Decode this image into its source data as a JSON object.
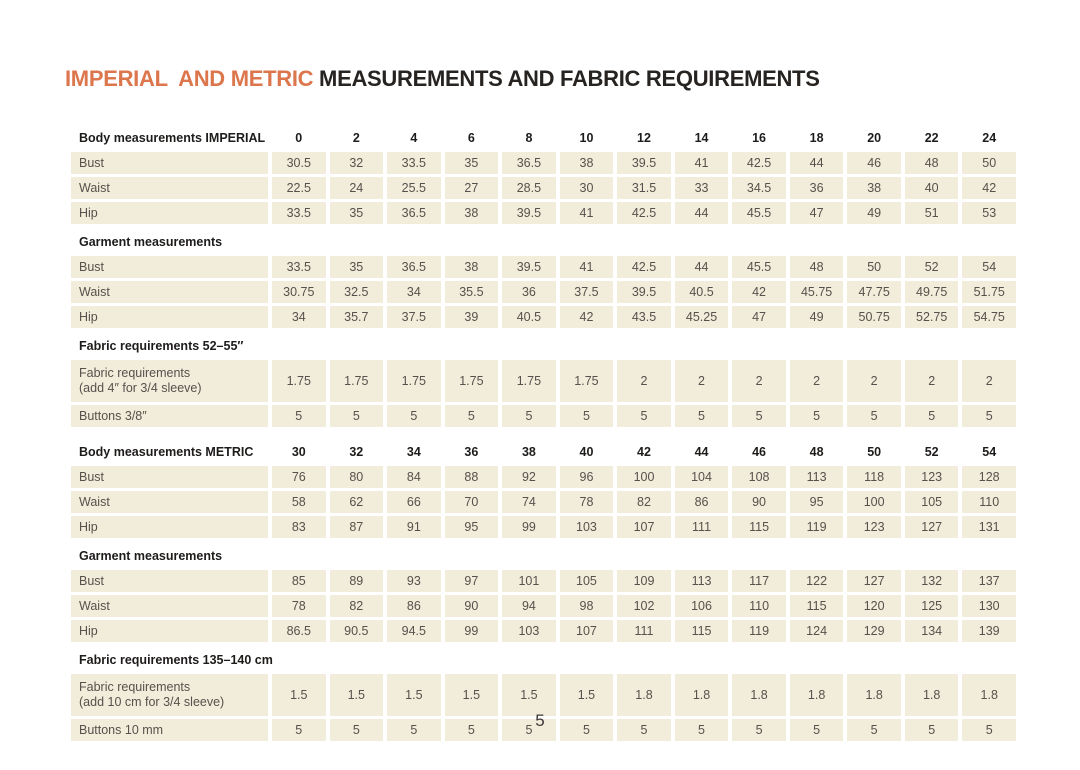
{
  "page": {
    "title_highlight": "IMPERIAL  AND METRIC ",
    "title_rest": "MEASUREMENTS AND FABRIC REQUIREMENTS",
    "page_number": "5",
    "colors": {
      "accent": "#DC764D",
      "cell_background": "#F2ECDA",
      "cell_text": "#56514C",
      "heading_text": "#1E1C1B"
    }
  },
  "table": {
    "sections": [
      {
        "header": "Body measurements IMPERIAL",
        "size_values": [
          "0",
          "2",
          "4",
          "6",
          "8",
          "10",
          "12",
          "14",
          "16",
          "18",
          "20",
          "22",
          "24"
        ],
        "rows": [
          {
            "label": "Bust",
            "values": [
              "30.5",
              "32",
              "33.5",
              "35",
              "36.5",
              "38",
              "39.5",
              "41",
              "42.5",
              "44",
              "46",
              "48",
              "50"
            ]
          },
          {
            "label": "Waist",
            "values": [
              "22.5",
              "24",
              "25.5",
              "27",
              "28.5",
              "30",
              "31.5",
              "33",
              "34.5",
              "36",
              "38",
              "40",
              "42"
            ]
          },
          {
            "label": "Hip",
            "values": [
              "33.5",
              "35",
              "36.5",
              "38",
              "39.5",
              "41",
              "42.5",
              "44",
              "45.5",
              "47",
              "49",
              "51",
              "53"
            ]
          }
        ]
      },
      {
        "header": "Garment measurements",
        "size_values": null,
        "rows": [
          {
            "label": "Bust",
            "values": [
              "33.5",
              "35",
              "36.5",
              "38",
              "39.5",
              "41",
              "42.5",
              "44",
              "45.5",
              "48",
              "50",
              "52",
              "54"
            ]
          },
          {
            "label": "Waist",
            "values": [
              "30.75",
              "32.5",
              "34",
              "35.5",
              "36",
              "37.5",
              "39.5",
              "40.5",
              "42",
              "45.75",
              "47.75",
              "49.75",
              "51.75"
            ]
          },
          {
            "label": "Hip",
            "values": [
              "34",
              "35.7",
              "37.5",
              "39",
              "40.5",
              "42",
              "43.5",
              "45.25",
              "47",
              "49",
              "50.75",
              "52.75",
              "54.75"
            ]
          }
        ]
      },
      {
        "header": "Fabric requirements 52–55″",
        "size_values": null,
        "rows": [
          {
            "label": "Fabric requirements",
            "label2": "(add 4″ for 3/4 sleeve)",
            "values": [
              "1.75",
              "1.75",
              "1.75",
              "1.75",
              "1.75",
              "1.75",
              "2",
              "2",
              "2",
              "2",
              "2",
              "2",
              "2"
            ]
          },
          {
            "label": "Buttons 3/8″",
            "values": [
              "5",
              "5",
              "5",
              "5",
              "5",
              "5",
              "5",
              "5",
              "5",
              "5",
              "5",
              "5",
              "5"
            ]
          }
        ]
      },
      {
        "header": "Body measurements METRIC",
        "size_values": [
          "30",
          "32",
          "34",
          "36",
          "38",
          "40",
          "42",
          "44",
          "46",
          "48",
          "50",
          "52",
          "54"
        ],
        "rows": [
          {
            "label": "Bust",
            "values": [
              "76",
              "80",
              "84",
              "88",
              "92",
              "96",
              "100",
              "104",
              "108",
              "113",
              "118",
              "123",
              "128"
            ]
          },
          {
            "label": "Waist",
            "values": [
              "58",
              "62",
              "66",
              "70",
              "74",
              "78",
              "82",
              "86",
              "90",
              "95",
              "100",
              "105",
              "110"
            ]
          },
          {
            "label": "Hip",
            "values": [
              "83",
              "87",
              "91",
              "95",
              "99",
              "103",
              "107",
              "111",
              "115",
              "119",
              "123",
              "127",
              "131"
            ]
          }
        ]
      },
      {
        "header": "Garment measurements",
        "size_values": null,
        "rows": [
          {
            "label": "Bust",
            "values": [
              "85",
              "89",
              "93",
              "97",
              "101",
              "105",
              "109",
              "113",
              "117",
              "122",
              "127",
              "132",
              "137"
            ]
          },
          {
            "label": "Waist",
            "values": [
              "78",
              "82",
              "86",
              "90",
              "94",
              "98",
              "102",
              "106",
              "110",
              "115",
              "120",
              "125",
              "130"
            ]
          },
          {
            "label": "Hip",
            "values": [
              "86.5",
              "90.5",
              "94.5",
              "99",
              "103",
              "107",
              "111",
              "115",
              "119",
              "124",
              "129",
              "134",
              "139"
            ]
          }
        ]
      },
      {
        "header": "Fabric requirements 135–140 cm",
        "size_values": null,
        "rows": [
          {
            "label": "Fabric requirements",
            "label2": "(add 10 cm for 3/4 sleeve)",
            "values": [
              "1.5",
              "1.5",
              "1.5",
              "1.5",
              "1.5",
              "1.5",
              "1.8",
              "1.8",
              "1.8",
              "1.8",
              "1.8",
              "1.8",
              "1.8"
            ]
          },
          {
            "label": "Buttons 10 mm",
            "values": [
              "5",
              "5",
              "5",
              "5",
              "5",
              "5",
              "5",
              "5",
              "5",
              "5",
              "5",
              "5",
              "5"
            ]
          }
        ]
      }
    ]
  }
}
